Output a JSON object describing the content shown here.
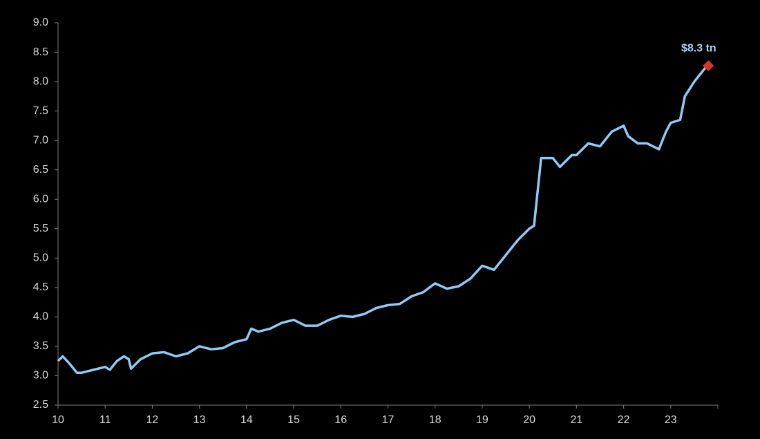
{
  "chart_data": {
    "type": "line",
    "x": [
      10.0,
      10.1,
      10.25,
      10.4,
      10.5,
      10.75,
      11.0,
      11.1,
      11.25,
      11.4,
      11.5,
      11.55,
      11.75,
      12.0,
      12.25,
      12.5,
      12.75,
      13.0,
      13.25,
      13.5,
      13.75,
      14.0,
      14.1,
      14.25,
      14.5,
      14.75,
      15.0,
      15.25,
      15.5,
      15.75,
      16.0,
      16.25,
      16.5,
      16.75,
      17.0,
      17.25,
      17.5,
      17.75,
      18.0,
      18.25,
      18.5,
      18.75,
      19.0,
      19.25,
      19.5,
      19.75,
      20.0,
      20.1,
      20.25,
      20.4,
      20.5,
      20.65,
      20.9,
      21.0,
      21.25,
      21.5,
      21.75,
      22.0,
      22.1,
      22.3,
      22.5,
      22.75,
      22.9,
      23.0,
      23.2,
      23.3,
      23.5,
      23.75
    ],
    "series": [
      {
        "color": "#8ecbf7",
        "values": [
          3.25,
          3.33,
          3.2,
          3.05,
          3.05,
          3.1,
          3.15,
          3.1,
          3.25,
          3.33,
          3.28,
          3.12,
          3.28,
          3.38,
          3.4,
          3.33,
          3.38,
          3.5,
          3.45,
          3.47,
          3.57,
          3.62,
          3.8,
          3.75,
          3.8,
          3.9,
          3.95,
          3.85,
          3.85,
          3.95,
          4.02,
          4.0,
          4.05,
          4.15,
          4.2,
          4.22,
          4.35,
          4.42,
          4.57,
          4.48,
          4.52,
          4.65,
          4.87,
          4.8,
          5.05,
          5.3,
          5.5,
          5.55,
          6.7,
          6.7,
          6.7,
          6.55,
          6.75,
          6.75,
          6.95,
          6.9,
          7.15,
          7.25,
          7.07,
          6.95,
          6.95,
          6.85,
          7.15,
          7.3,
          7.35,
          7.75,
          8.0,
          8.25
        ]
      }
    ],
    "annotation": {
      "x": 23.8,
      "y": 8.27,
      "text": "$8.3 tn",
      "color": "#d9342b",
      "text_color": "#a9d4f5"
    },
    "xlim": [
      10,
      24
    ],
    "xticks": [
      10,
      11,
      12,
      13,
      14,
      15,
      16,
      17,
      18,
      19,
      20,
      21,
      22,
      23
    ],
    "ylim": [
      2.5,
      9.0
    ],
    "yticks": [
      2.5,
      {
        "value": 3,
        "label": "3.0"
      },
      3.5,
      {
        "value": 4,
        "label": "4.0"
      },
      4.5,
      {
        "value": 5,
        "label": "5.0"
      },
      5.5,
      {
        "value": 6,
        "label": "6.0"
      },
      6.5,
      {
        "value": 7,
        "label": "7.0"
      },
      7.5,
      {
        "value": 8,
        "label": "8.0"
      },
      8.5,
      {
        "value": 9,
        "label": "9.0"
      }
    ]
  }
}
